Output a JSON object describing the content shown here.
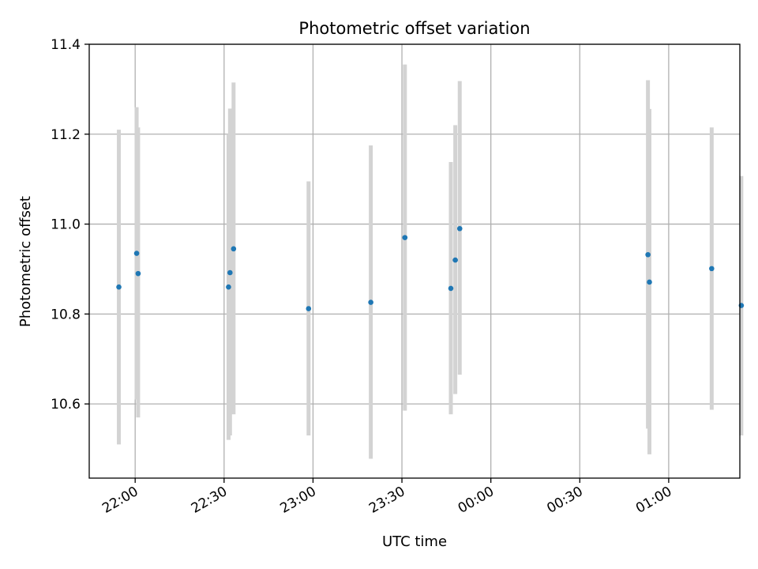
{
  "chart_data": {
    "type": "scatter",
    "title": "Photometric offset variation",
    "xlabel": "UTC time",
    "ylabel": "Photometric offset",
    "ylim": [
      10.435,
      11.4
    ],
    "xlim_minutes": [
      -15.5,
      204
    ],
    "yticks": [
      10.6,
      10.8,
      11.0,
      11.2,
      11.4
    ],
    "ytick_labels": [
      "10.6",
      "10.8",
      "11.0",
      "11.2",
      "11.4"
    ],
    "xticks_minutes": [
      0,
      30,
      60,
      90,
      120,
      150,
      180
    ],
    "xtick_labels": [
      "22:00",
      "22:30",
      "23:00",
      "23:30",
      "00:00",
      "00:30",
      "01:00"
    ],
    "x_unit": "minutes after 22:00 UTC",
    "grid": true,
    "marker_color": "#1f77b4",
    "errorbar_color": "#d3d3d3",
    "points": [
      {
        "t": -5.5,
        "y": 10.86,
        "lo": 10.51,
        "hi": 11.21
      },
      {
        "t": 0.5,
        "y": 10.935,
        "lo": 10.61,
        "hi": 11.26
      },
      {
        "t": 1.0,
        "y": 10.89,
        "lo": 10.57,
        "hi": 11.215
      },
      {
        "t": 31.5,
        "y": 10.86,
        "lo": 10.52,
        "hi": 11.2
      },
      {
        "t": 32.0,
        "y": 10.892,
        "lo": 10.53,
        "hi": 11.257
      },
      {
        "t": 33.2,
        "y": 10.945,
        "lo": 10.577,
        "hi": 11.315
      },
      {
        "t": 58.5,
        "y": 10.812,
        "lo": 10.53,
        "hi": 11.095
      },
      {
        "t": 79.5,
        "y": 10.826,
        "lo": 10.478,
        "hi": 11.175
      },
      {
        "t": 91.0,
        "y": 10.97,
        "lo": 10.585,
        "hi": 11.355
      },
      {
        "t": 106.5,
        "y": 10.857,
        "lo": 10.577,
        "hi": 11.138
      },
      {
        "t": 108.0,
        "y": 10.92,
        "lo": 10.622,
        "hi": 11.22
      },
      {
        "t": 109.5,
        "y": 10.99,
        "lo": 10.665,
        "hi": 11.318
      },
      {
        "t": 173.0,
        "y": 10.932,
        "lo": 10.545,
        "hi": 11.32
      },
      {
        "t": 173.5,
        "y": 10.871,
        "lo": 10.488,
        "hi": 11.256
      },
      {
        "t": 194.5,
        "y": 10.901,
        "lo": 10.587,
        "hi": 11.215
      },
      {
        "t": 204.5,
        "y": 10.819,
        "lo": 10.53,
        "hi": 11.107
      }
    ]
  }
}
